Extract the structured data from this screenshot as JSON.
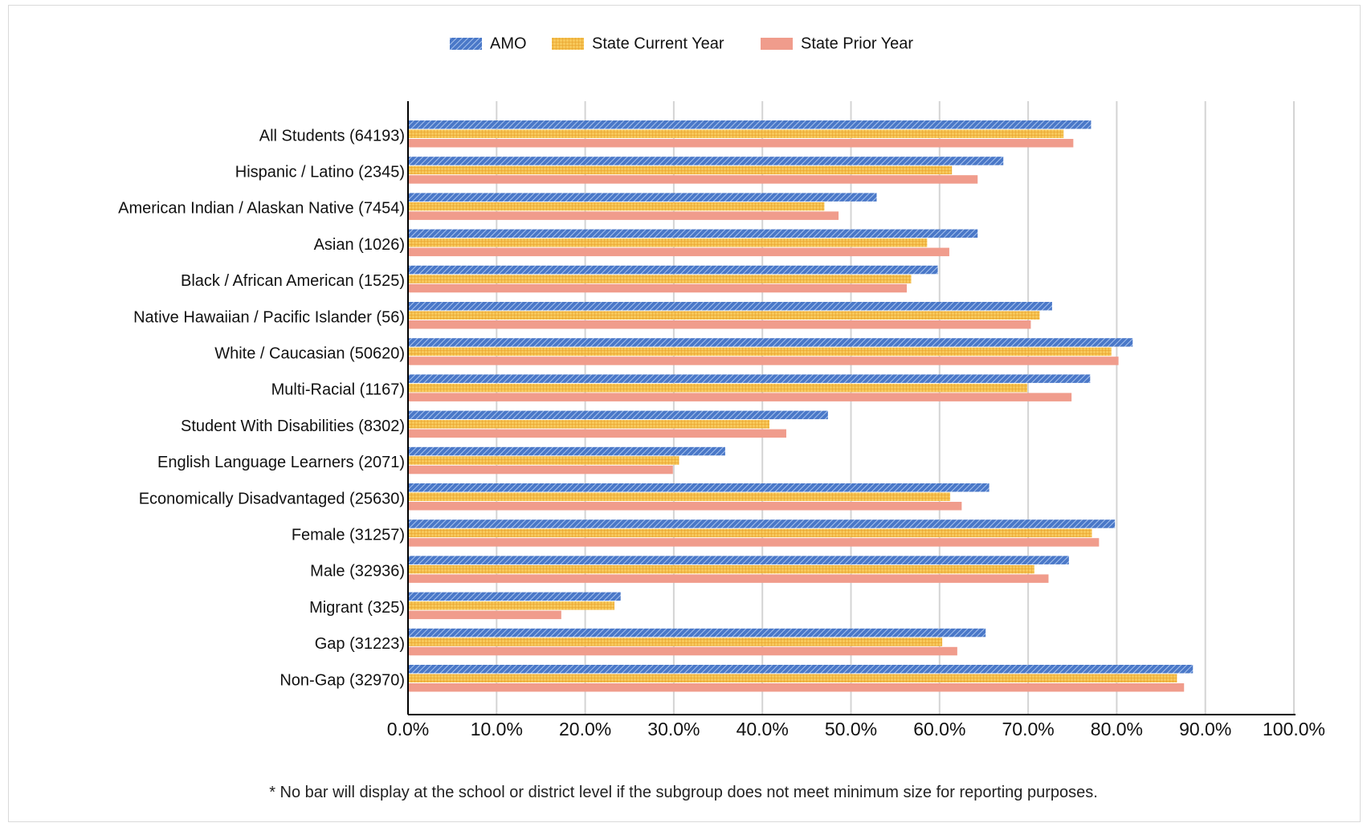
{
  "chart_data": {
    "type": "bar",
    "orientation": "horizontal",
    "categories": [
      "All Students (64193)",
      "Hispanic / Latino (2345)",
      "American Indian / Alaskan Native (7454)",
      "Asian (1026)",
      "Black / African American (1525)",
      "Native Hawaiian / Pacific Islander (56)",
      "White / Caucasian (50620)",
      "Multi-Racial (1167)",
      "Student With Disabilities (8302)",
      "English Language Learners (2071)",
      "Economically Disadvantaged (25630)",
      "Female (31257)",
      "Male (32936)",
      "Migrant (325)",
      "Gap (31223)",
      "Non-Gap (32970)"
    ],
    "series": [
      {
        "name": "AMO",
        "color": "#5b8ad6",
        "pattern": "diagonal-stripes",
        "values": [
          77.1,
          67.2,
          52.9,
          64.3,
          59.8,
          72.7,
          81.8,
          77.0,
          47.4,
          35.8,
          65.6,
          79.8,
          74.6,
          24.0,
          65.2,
          88.6
        ]
      },
      {
        "name": "State Current Year",
        "color": "#f5b83f",
        "pattern": "grid",
        "values": [
          74.0,
          61.4,
          47.0,
          58.6,
          56.8,
          71.3,
          79.4,
          69.9,
          40.8,
          30.6,
          61.2,
          77.2,
          70.7,
          23.3,
          60.3,
          86.8
        ]
      },
      {
        "name": "State Prior Year",
        "color": "#f09c8c",
        "pattern": "solid",
        "values": [
          75.1,
          64.3,
          48.6,
          61.1,
          56.3,
          70.3,
          80.2,
          74.9,
          42.7,
          29.9,
          62.5,
          78.0,
          72.3,
          17.3,
          62.0,
          87.6
        ]
      }
    ],
    "x_ticks": [
      "0.0%",
      "10.0%",
      "20.0%",
      "30.0%",
      "40.0%",
      "50.0%",
      "60.0%",
      "70.0%",
      "80.0%",
      "90.0%",
      "100.0%"
    ],
    "xlim": [
      0,
      100
    ],
    "grid": "vertical",
    "legend": "top-center"
  },
  "footnote": "* No bar will display at the school or district level if the subgroup does not meet minimum size for reporting purposes."
}
